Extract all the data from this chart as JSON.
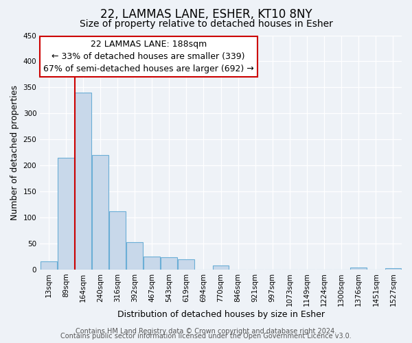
{
  "title": "22, LAMMAS LANE, ESHER, KT10 8NY",
  "subtitle": "Size of property relative to detached houses in Esher",
  "xlabel": "Distribution of detached houses by size in Esher",
  "ylabel": "Number of detached properties",
  "bin_labels": [
    "13sqm",
    "89sqm",
    "164sqm",
    "240sqm",
    "316sqm",
    "392sqm",
    "467sqm",
    "543sqm",
    "619sqm",
    "694sqm",
    "770sqm",
    "846sqm",
    "921sqm",
    "997sqm",
    "1073sqm",
    "1149sqm",
    "1224sqm",
    "1300sqm",
    "1376sqm",
    "1451sqm",
    "1527sqm"
  ],
  "bar_heights": [
    15,
    215,
    340,
    220,
    112,
    52,
    25,
    23,
    20,
    0,
    8,
    0,
    0,
    0,
    0,
    0,
    0,
    0,
    4,
    0,
    3
  ],
  "bar_color": "#c8d8ea",
  "bar_edge_color": "#6baed6",
  "red_line_color": "#cc0000",
  "annotation_line1": "22 LAMMAS LANE: 188sqm",
  "annotation_line2": "← 33% of detached houses are smaller (339)",
  "annotation_line3": "67% of semi-detached houses are larger (692) →",
  "ylim": [
    0,
    450
  ],
  "yticks": [
    0,
    50,
    100,
    150,
    200,
    250,
    300,
    350,
    400,
    450
  ],
  "footer1": "Contains HM Land Registry data © Crown copyright and database right 2024.",
  "footer2": "Contains public sector information licensed under the Open Government Licence v3.0.",
  "bg_color": "#eef2f7",
  "plot_bg_color": "#eef2f7",
  "title_fontsize": 12,
  "subtitle_fontsize": 10,
  "axis_label_fontsize": 9,
  "tick_fontsize": 7.5,
  "annotation_fontsize": 9,
  "footer_fontsize": 7
}
